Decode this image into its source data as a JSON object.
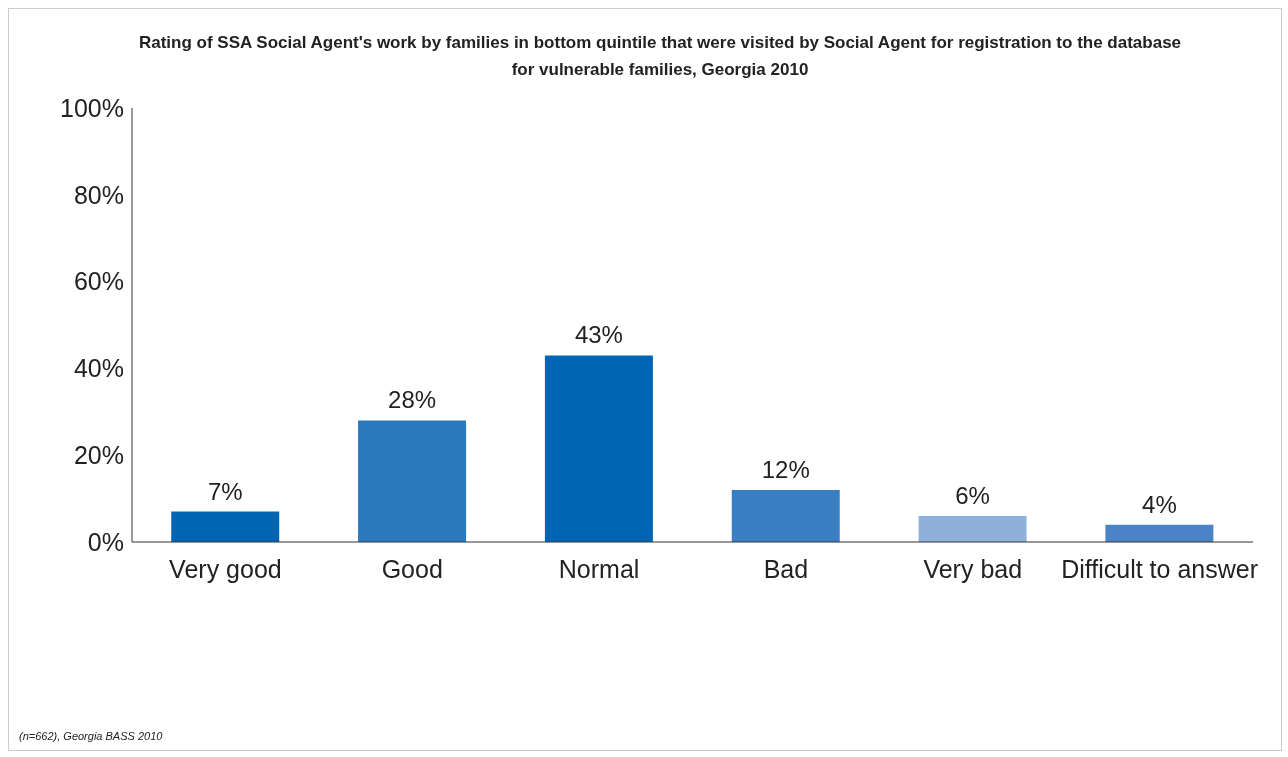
{
  "chart_data": {
    "type": "bar",
    "title": "Rating of SSA Social Agent's work by families in bottom quintile that were visited by Social Agent for registration to the database for vulnerable families, Georgia 2010",
    "categories": [
      "Very good",
      "Good",
      "Normal",
      "Bad",
      "Very bad",
      "Difficult to answer"
    ],
    "values": [
      7,
      28,
      43,
      12,
      6,
      4
    ],
    "colors": [
      "#0066b3",
      "#2a7abf",
      "#0066b3",
      "#3a7fc4",
      "#8fb0da",
      "#4a84c6"
    ],
    "value_labels": [
      "7%",
      "28%",
      "43%",
      "12%",
      "6%",
      "4%"
    ],
    "ylim": [
      0,
      100
    ],
    "yticks": [
      {
        "value": 0,
        "label": "0%"
      },
      {
        "value": 20,
        "label": "20%"
      },
      {
        "value": 40,
        "label": "40%"
      },
      {
        "value": 60,
        "label": "60%"
      },
      {
        "value": 80,
        "label": "80%"
      },
      {
        "value": 100,
        "label": "100%"
      }
    ],
    "grid": false,
    "legend": false,
    "annotations": [
      "(n=662), Georgia BASS 2010"
    ]
  }
}
